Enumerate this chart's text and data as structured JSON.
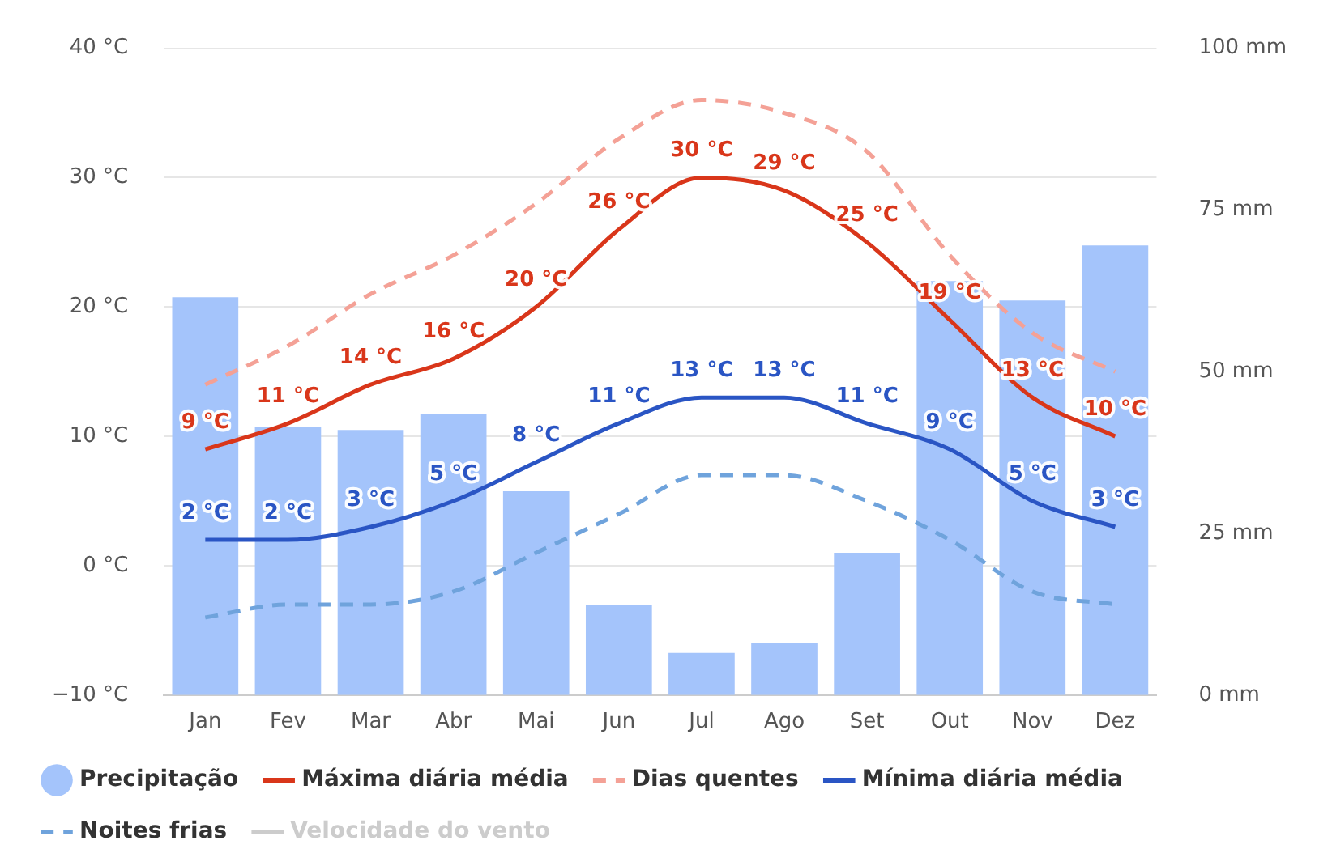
{
  "chart_data": {
    "type": "bar",
    "categories": [
      "Jan",
      "Fev",
      "Mar",
      "Abr",
      "Mai",
      "Jun",
      "Jul",
      "Ago",
      "Set",
      "Out",
      "Nov",
      "Dez"
    ],
    "series": [
      {
        "name": "Precipitação",
        "axis": "y2",
        "color": "#a4c4fb",
        "values": [
          61.5,
          41.5,
          41,
          43.5,
          31.5,
          14,
          6.5,
          8,
          22,
          64,
          61,
          69.5
        ]
      },
      {
        "name": "Máxima diária média",
        "type": "line",
        "color": "#d9361a",
        "values": [
          9,
          11,
          14,
          16,
          20,
          26,
          30,
          29,
          25,
          19,
          13,
          10
        ],
        "value_labels": [
          "9 °C",
          "11 °C",
          "14 °C",
          "16 °C",
          "20 °C",
          "26 °C",
          "30 °C",
          "29 °C",
          "25 °C",
          "19 °C",
          "13 °C",
          "10 °C"
        ]
      },
      {
        "name": "Dias quentes",
        "type": "line",
        "line_style": "dashed",
        "color": "#f4a196",
        "values": [
          14,
          17,
          21,
          24,
          28,
          33,
          36,
          35,
          32,
          24,
          18,
          15
        ]
      },
      {
        "name": "Mínima diária média",
        "type": "line",
        "color": "#2a55c4",
        "values": [
          2,
          2,
          3,
          5,
          8,
          11,
          13,
          13,
          11,
          9,
          5,
          3
        ],
        "value_labels": [
          "2 °C",
          "2 °C",
          "3 °C",
          "5 °C",
          "8 °C",
          "11 °C",
          "13 °C",
          "13 °C",
          "11 °C",
          "9 °C",
          "5 °C",
          "3 °C"
        ]
      },
      {
        "name": "Noites frias",
        "type": "line",
        "line_style": "dashed",
        "color": "#6fa3dc",
        "values": [
          -4,
          -3,
          -3,
          -2,
          1,
          4,
          7,
          7,
          5,
          2,
          -2,
          -3
        ]
      },
      {
        "name": "Velocidade do vento",
        "type": "line",
        "color": "#cccccc",
        "values": [
          null,
          null,
          null,
          null,
          null,
          null,
          null,
          null,
          null,
          null,
          null,
          null
        ]
      }
    ],
    "ylim": [
      -10,
      40
    ],
    "yticks": [
      {
        "value": -10,
        "label": "−10 °C"
      },
      {
        "value": 0,
        "label": "0 °C"
      },
      {
        "value": 10,
        "label": "10 °C"
      },
      {
        "value": 20,
        "label": "20 °C"
      },
      {
        "value": 30,
        "label": "30 °C"
      },
      {
        "value": 40,
        "label": "40 °C"
      }
    ],
    "y2lim": [
      0,
      100
    ],
    "y2ticks": [
      {
        "value": 0,
        "label": "0 mm"
      },
      {
        "value": 25,
        "label": "25 mm"
      },
      {
        "value": 50,
        "label": "50 mm"
      },
      {
        "value": 75,
        "label": "75 mm"
      },
      {
        "value": 100,
        "label": "100 mm"
      }
    ],
    "grid": "y",
    "legend": "bottom",
    "marker": "none"
  }
}
